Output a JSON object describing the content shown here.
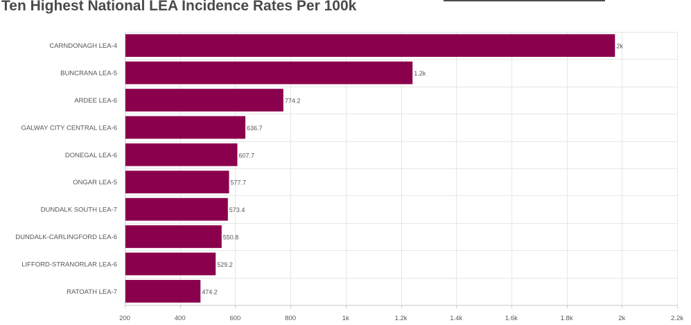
{
  "chart_data": {
    "type": "bar",
    "orientation": "horizontal",
    "title": "Ten Highest National LEA Incidence Rates Per 100k",
    "categories": [
      "CARNDONAGH LEA-4",
      "BUNCRANA LEA-5",
      "ARDEE LEA-6",
      "GALWAY CITY CENTRAL LEA-6",
      "DONEGAL LEA-6",
      "ONGAR LEA-5",
      "DUNDALK SOUTH LEA-7",
      "DUNDALK-CARLINGFORD LEA-6",
      "LIFFORD-STRANORLAR LEA-6",
      "RATOATH LEA-7"
    ],
    "values": [
      1975,
      1242,
      774.2,
      636.7,
      607.7,
      577.7,
      573.4,
      550.8,
      529.2,
      474.2
    ],
    "data_labels": [
      "2k",
      "1.2k",
      "774.2",
      "636.7",
      "607.7",
      "577.7",
      "573.4",
      "550.8",
      "529.2",
      "474.2"
    ],
    "xlim": [
      200,
      2200
    ],
    "xticks": [
      200,
      400,
      600,
      800,
      1000,
      1200,
      1400,
      1600,
      1800,
      2000,
      2200
    ],
    "xtick_labels": [
      "200",
      "400",
      "600",
      "800",
      "1k",
      "1.2k",
      "1.4k",
      "1.6k",
      "1.8k",
      "2k",
      "2.2k"
    ],
    "xlabel": "",
    "ylabel": "",
    "grid": true,
    "bar_color": "#8b004d"
  }
}
